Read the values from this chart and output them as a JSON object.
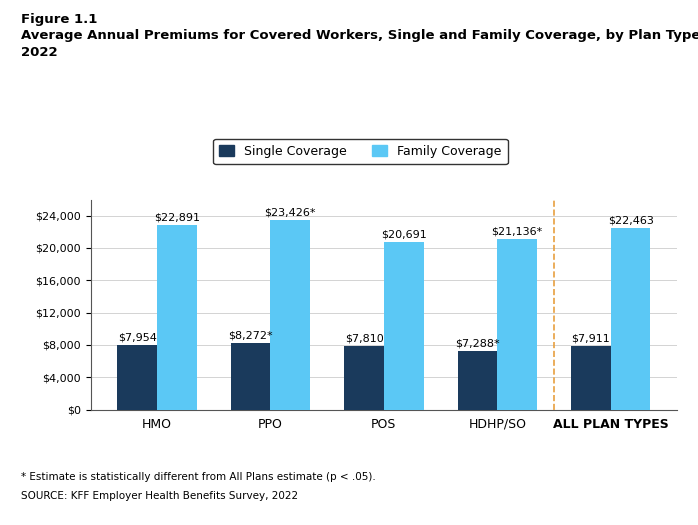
{
  "figure_label": "Figure 1.1",
  "title_line1": "Average Annual Premiums for Covered Workers, Single and Family Coverage, by Plan Type,",
  "title_line2": "2022",
  "categories": [
    "HMO",
    "PPO",
    "POS",
    "HDHP/SO",
    "ALL PLAN TYPES"
  ],
  "single_values": [
    7954,
    8272,
    7810,
    7288,
    7911
  ],
  "family_values": [
    22891,
    23426,
    20691,
    21136,
    22463
  ],
  "single_labels": [
    "$7,954",
    "$8,272*",
    "$7,810",
    "$7,288*",
    "$7,911"
  ],
  "family_labels": [
    "$22,891",
    "$23,426*",
    "$20,691",
    "$21,136*",
    "$22,463"
  ],
  "single_color": "#1a3a5c",
  "family_color": "#5bc8f5",
  "legend_single": "Single Coverage",
  "legend_family": "Family Coverage",
  "ylim": [
    0,
    26000
  ],
  "yticks": [
    0,
    4000,
    8000,
    12000,
    16000,
    20000,
    24000
  ],
  "dashed_color": "#e8a040",
  "footnote1": "* Estimate is statistically different from All Plans estimate (p < .05).",
  "footnote2": "SOURCE: KFF Employer Health Benefits Survey, 2022",
  "bar_width": 0.35
}
